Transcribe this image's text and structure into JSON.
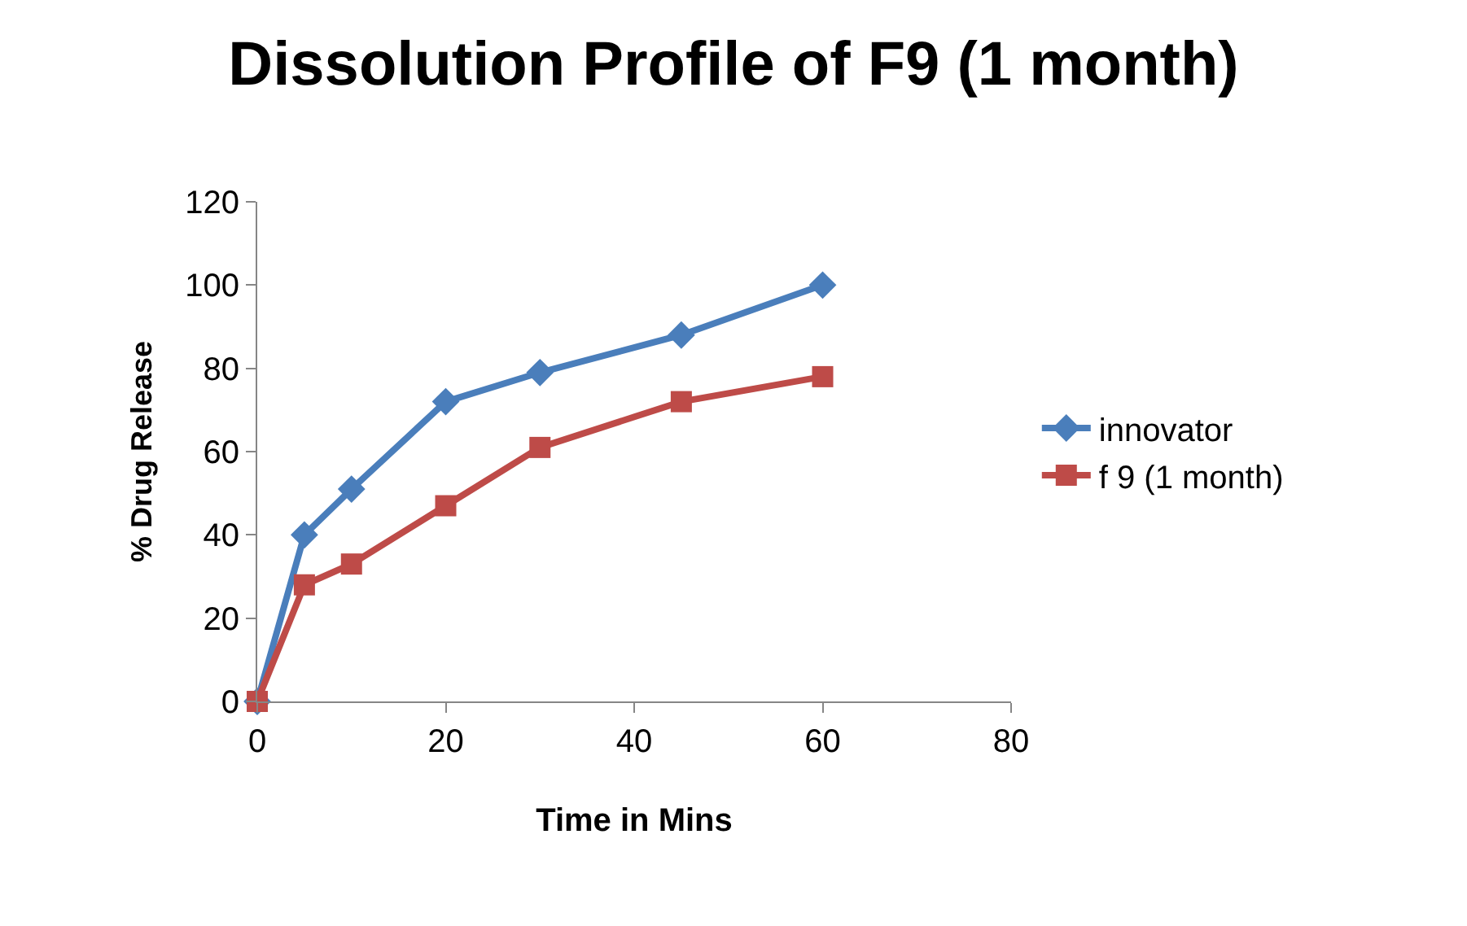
{
  "chart_data": {
    "type": "line",
    "title": "Dissolution Profile of F9 (1 month)",
    "xlabel": "Time in Mins",
    "ylabel": "% Drug Release",
    "x": [
      0,
      5,
      10,
      20,
      30,
      45,
      60
    ],
    "series": [
      {
        "name": "innovator",
        "color": "#4a7ebb",
        "marker": "diamond",
        "values": [
          0,
          40,
          51,
          72,
          79,
          88,
          100
        ]
      },
      {
        "name": "f 9 (1 month)",
        "color": "#be4b48",
        "marker": "square",
        "values": [
          0,
          28,
          33,
          47,
          61,
          72,
          78
        ]
      }
    ],
    "xlim": [
      0,
      80
    ],
    "xticks": [
      0,
      20,
      40,
      60,
      80
    ],
    "ylim": [
      0,
      120
    ],
    "yticks": [
      0,
      20,
      40,
      60,
      80,
      100,
      120
    ],
    "legend": "right",
    "line_style": "solid"
  }
}
